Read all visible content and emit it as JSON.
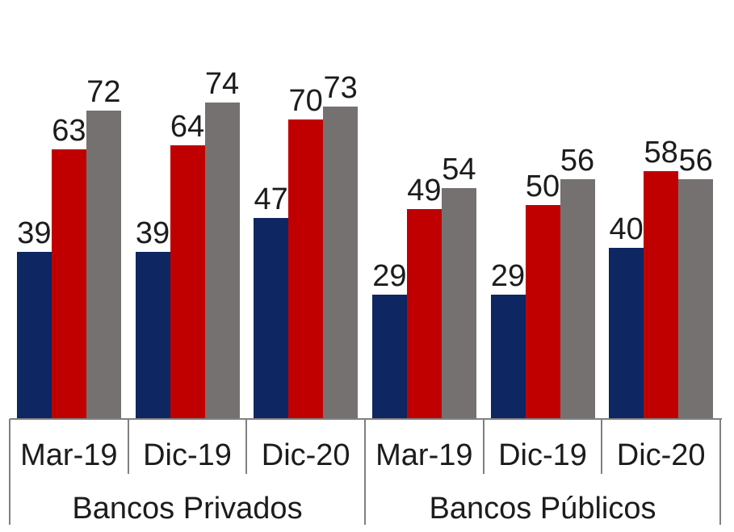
{
  "chart_data": {
    "type": "bar",
    "title": "",
    "categories": [
      "Mar-19",
      "Dic-19",
      "Dic-20",
      "Mar-19",
      "Dic-19",
      "Dic-20"
    ],
    "category_groups": [
      {
        "label": "Bancos Privados",
        "span": [
          0,
          2
        ]
      },
      {
        "label": "Bancos Públicos",
        "span": [
          3,
          5
        ]
      }
    ],
    "series": [
      {
        "name": "navy",
        "color": "#0e2661",
        "values": [
          39,
          39,
          47,
          29,
          29,
          40
        ]
      },
      {
        "name": "red",
        "color": "#c00000",
        "values": [
          63,
          64,
          70,
          49,
          50,
          58
        ]
      },
      {
        "name": "gray",
        "color": "#767171",
        "values": [
          72,
          74,
          73,
          54,
          56,
          56
        ]
      }
    ],
    "ylim": [
      0,
      80
    ],
    "data_labels": true,
    "legend": "none",
    "grid": false,
    "axis_line_color": "#808080",
    "text_color": "#1c1c1c",
    "background": "#ffffff"
  }
}
